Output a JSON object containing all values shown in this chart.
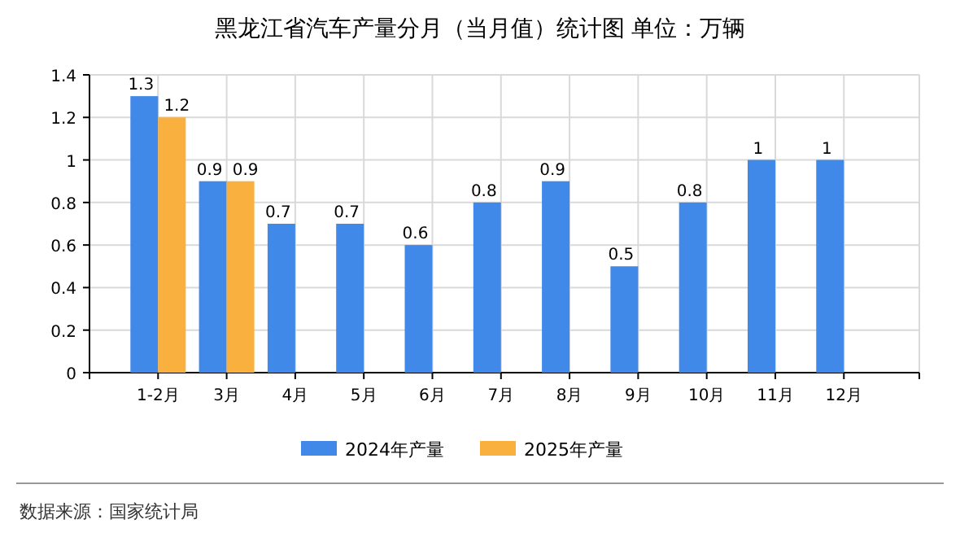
{
  "chart_data": {
    "type": "bar",
    "title": "黑龙江省汽车产量分月（当月值）统计图 单位：万辆",
    "categories": [
      "1-2月",
      "3月",
      "4月",
      "5月",
      "6月",
      "7月",
      "8月",
      "9月",
      "10月",
      "11月",
      "12月"
    ],
    "series": [
      {
        "name": "2024年产量",
        "color": "#4189e8",
        "values": [
          1.3,
          0.9,
          0.7,
          0.7,
          0.6,
          0.8,
          0.9,
          0.5,
          0.8,
          1,
          1
        ]
      },
      {
        "name": "2025年产量",
        "color": "#f9b03f",
        "values": [
          1.2,
          0.9,
          null,
          null,
          null,
          null,
          null,
          null,
          null,
          null,
          null
        ]
      }
    ],
    "ylim": [
      0,
      1.4
    ],
    "yticks": [
      0,
      0.2,
      0.4,
      0.6,
      0.8,
      1,
      1.2,
      1.4
    ],
    "grid": true,
    "legend": "bottom",
    "data_labels": true,
    "annotations": [
      "数据来源：国家统计局"
    ]
  }
}
